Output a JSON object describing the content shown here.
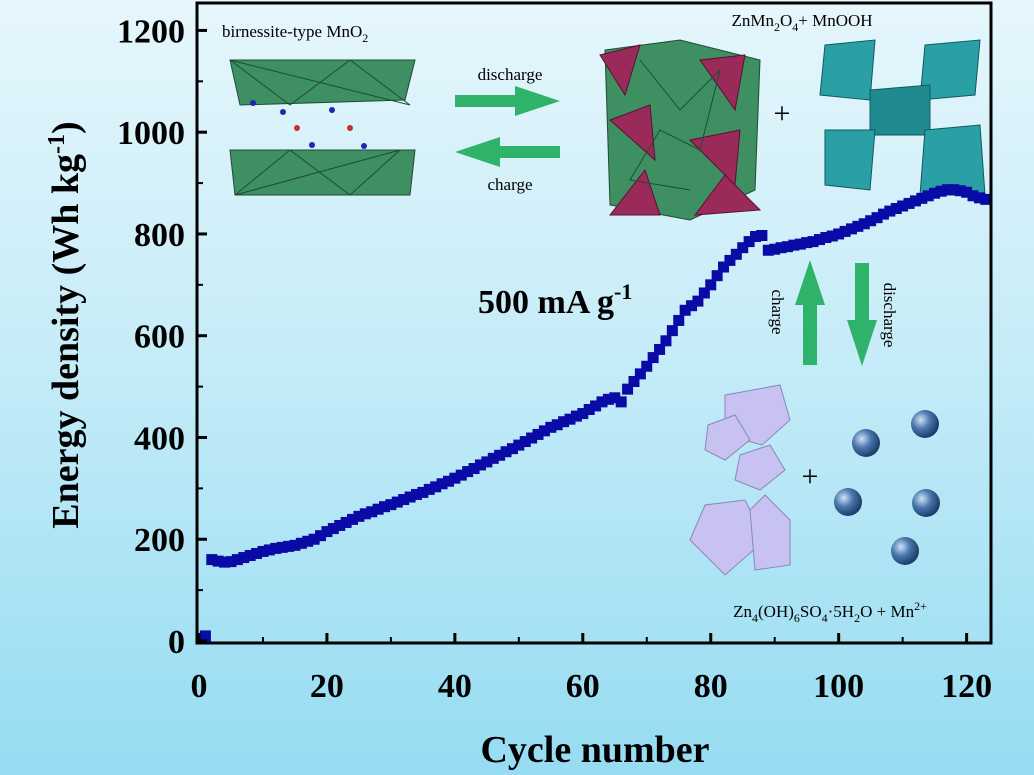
{
  "chart_data": {
    "type": "scatter",
    "title": "",
    "xlabel": "Cycle number",
    "ylabel": "Energy density (Wh kg-1)",
    "ylabel_main": "Energy density (Wh kg",
    "ylabel_sup": "-1",
    "ylabel_end": ")",
    "xlim": [
      0,
      123.5
    ],
    "ylim": [
      0,
      1250
    ],
    "xticks": [
      0,
      20,
      40,
      60,
      80,
      100,
      120
    ],
    "yticks": [
      0,
      200,
      400,
      600,
      800,
      1000,
      1200
    ],
    "grid": false,
    "marker_color": "#0a0aa6",
    "x_start": 1,
    "values": [
      10,
      160,
      157,
      155,
      156,
      160,
      164,
      168,
      172,
      176,
      179,
      182,
      184,
      186,
      188,
      192,
      196,
      200,
      207,
      215,
      221,
      227,
      233,
      239,
      245,
      250,
      254,
      259,
      264,
      268,
      273,
      278,
      283,
      288,
      292,
      298,
      303,
      309,
      314,
      320,
      326,
      333,
      339,
      346,
      352,
      359,
      365,
      372,
      378,
      385,
      392,
      399,
      406,
      413,
      420,
      425,
      431,
      436,
      442,
      447,
      455,
      462,
      470,
      475,
      478,
      470,
      495,
      510,
      525,
      540,
      557,
      573,
      590,
      610,
      630,
      650,
      659,
      668,
      684,
      700,
      718,
      735,
      748,
      760,
      773,
      785,
      795,
      797,
      768,
      770,
      773,
      775,
      778,
      780,
      783,
      785,
      789,
      793,
      796,
      800,
      805,
      810,
      815,
      820,
      826,
      832,
      839,
      845,
      850,
      855,
      860,
      865,
      870,
      875,
      880,
      884,
      887,
      887,
      885,
      882,
      875,
      871,
      868
    ],
    "annotations": {
      "rate": "500 mA g",
      "rate_sup": "-1",
      "birnessite": "birnessite-type MnO",
      "birnessite_sub": "2",
      "discharge": "discharge",
      "charge": "charge",
      "spinel_a": "ZnMn",
      "spinel_sub1": "2",
      "spinel_b": "O",
      "spinel_sub2": "4",
      "spinel_c": "+ MnOOH",
      "plus": "+",
      "zhs": [
        "Zn",
        "4",
        "(OH)",
        "6",
        "SO",
        "4",
        "·5H",
        "2",
        "O + Mn",
        "2+"
      ]
    }
  },
  "colors": {
    "arrow": "#2fb36a",
    "green": "#3a8a5a",
    "maroon": "#9a2a5a",
    "teal": "#2aa0a6",
    "lavender": "#c7c2f2",
    "sphere": "#4a78ae"
  }
}
